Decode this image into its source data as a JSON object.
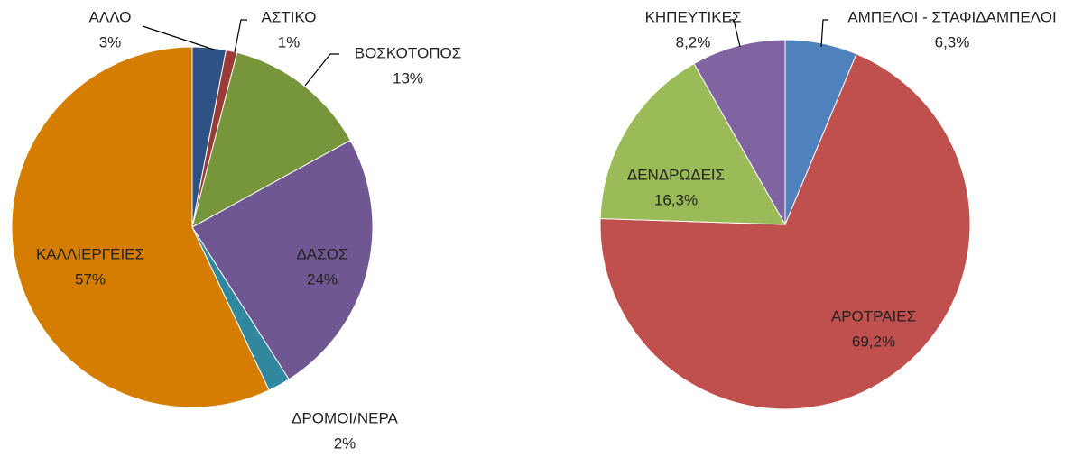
{
  "chart_data": [
    {
      "type": "pie",
      "categories": [
        "ΑΛΛΟ",
        "ΑΣΤΙΚΟ",
        "ΒΟΣΚΟΤΟΠΟΣ",
        "ΔΑΣΟΣ",
        "ΔΡΟΜΟΙ/ΝΕΡΑ",
        "ΚΑΛΛΙΕΡΓΕΙΕΣ"
      ],
      "values": [
        3,
        1,
        13,
        24,
        2,
        57
      ],
      "value_labels": [
        "3%",
        "1%",
        "13%",
        "24%",
        "2%",
        "57%"
      ],
      "colors": [
        "#2e5283",
        "#9a3a36",
        "#77963c",
        "#6f5892",
        "#31879e",
        "#d47d00"
      ]
    },
    {
      "type": "pie",
      "categories": [
        "ΑΜΠΕΛΟΙ - ΣΤΑΦΙΔΑΜΠΕΛΟΙ",
        "ΑΡΟΤΡΑΙΕΣ",
        "ΔΕΝΔΡΩΔΕΙΣ",
        "ΚΗΠΕΥΤΙΚΕΣ"
      ],
      "values": [
        6.3,
        69.2,
        16.3,
        8.2
      ],
      "value_labels": [
        "6,3%",
        "69,2%",
        "16,3%",
        "8,2%"
      ],
      "colors": [
        "#4f81bd",
        "#c0504d",
        "#9bbb59",
        "#8064a2"
      ]
    }
  ]
}
